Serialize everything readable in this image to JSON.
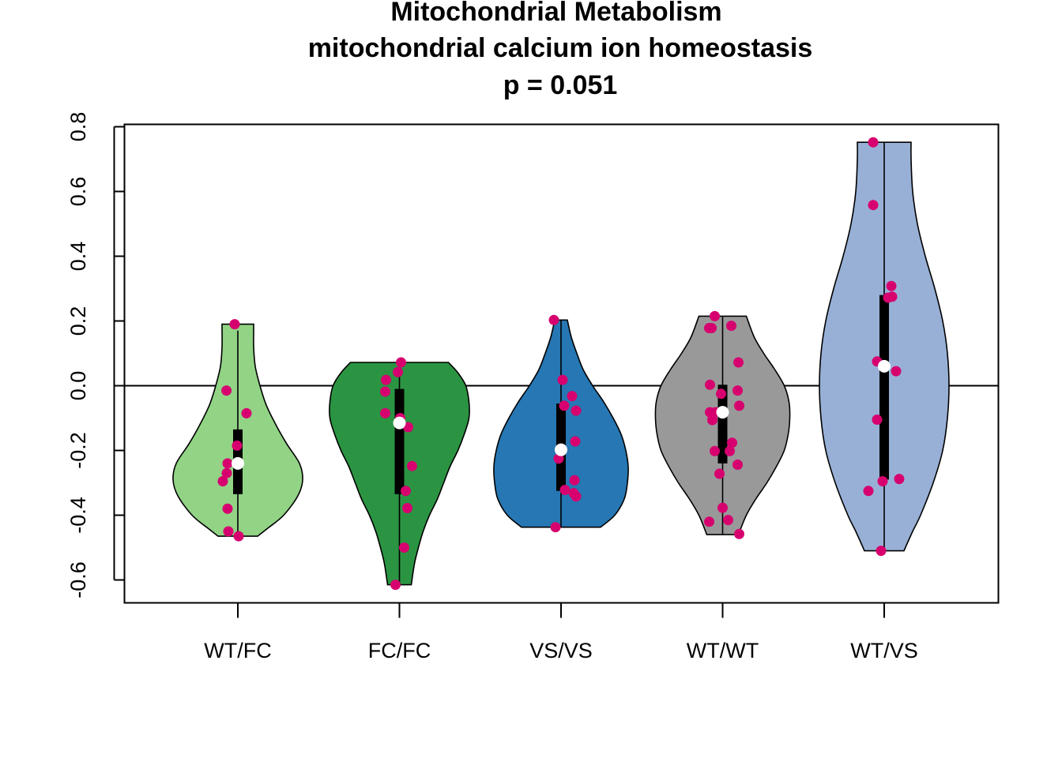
{
  "chart_data": {
    "type": "violin",
    "title": [
      "Mitochondrial Metabolism",
      "mitochondrial calcium ion homeostasis",
      "p = 0.051"
    ],
    "xlabel": "",
    "ylabel": "",
    "categories": [
      "WT/FC",
      "FC/FC",
      "VS/VS",
      "WT/WT",
      "WT/VS"
    ],
    "ylim": [
      -0.67,
      0.81
    ],
    "yticks": [
      -0.6,
      -0.4,
      -0.2,
      0.0,
      0.2,
      0.4,
      0.6,
      0.8
    ],
    "ytick_labels": [
      "-0.6",
      "-0.4",
      "-0.2",
      "0.0",
      "0.2",
      "0.4",
      "0.6",
      "0.8"
    ],
    "reference_line": 0,
    "point_color": "#d6006e",
    "groups": [
      {
        "name": "WT/FC",
        "color": "#92d386",
        "min": -0.465,
        "max": 0.19,
        "whisker_top": 0.17,
        "q1": -0.335,
        "q3": -0.135,
        "median": -0.24,
        "density": [
          [
            -0.465,
            0.25
          ],
          [
            -0.44,
            0.38
          ],
          [
            -0.4,
            0.58
          ],
          [
            -0.34,
            0.76
          ],
          [
            -0.29,
            0.82
          ],
          [
            -0.24,
            0.78
          ],
          [
            -0.18,
            0.62
          ],
          [
            -0.12,
            0.48
          ],
          [
            -0.06,
            0.36
          ],
          [
            0.0,
            0.28
          ],
          [
            0.06,
            0.22
          ],
          [
            0.12,
            0.2
          ],
          [
            0.17,
            0.2
          ],
          [
            0.19,
            0.2
          ]
        ],
        "points": [
          [
            -0.2,
            0.19
          ],
          [
            -0.72,
            -0.015
          ],
          [
            0.55,
            -0.085
          ],
          [
            -0.05,
            -0.185
          ],
          [
            -0.65,
            -0.24
          ],
          [
            0.05,
            -0.24
          ],
          [
            -0.7,
            -0.27
          ],
          [
            -0.95,
            -0.295
          ],
          [
            -0.65,
            -0.38
          ],
          [
            -0.6,
            -0.45
          ],
          [
            0.05,
            -0.465
          ]
        ]
      },
      {
        "name": "FC/FC",
        "color": "#2b9443",
        "min": -0.615,
        "max": 0.072,
        "whisker_top": 0.072,
        "q1": -0.335,
        "q3": -0.01,
        "median": -0.115,
        "density": [
          [
            -0.615,
            0.15
          ],
          [
            -0.55,
            0.19
          ],
          [
            -0.5,
            0.24
          ],
          [
            -0.45,
            0.3
          ],
          [
            -0.4,
            0.38
          ],
          [
            -0.35,
            0.48
          ],
          [
            -0.3,
            0.56
          ],
          [
            -0.25,
            0.64
          ],
          [
            -0.2,
            0.74
          ],
          [
            -0.15,
            0.82
          ],
          [
            -0.1,
            0.88
          ],
          [
            -0.05,
            0.88
          ],
          [
            0.0,
            0.84
          ],
          [
            0.04,
            0.74
          ],
          [
            0.072,
            0.62
          ]
        ],
        "points": [
          [
            0.1,
            0.072
          ],
          [
            -0.85,
            0.018
          ],
          [
            -0.1,
            0.042
          ],
          [
            -0.9,
            -0.018
          ],
          [
            -0.9,
            -0.085
          ],
          [
            0.05,
            -0.1
          ],
          [
            0.55,
            -0.128
          ],
          [
            0.8,
            -0.248
          ],
          [
            0.4,
            -0.325
          ],
          [
            0.5,
            -0.378
          ],
          [
            0.3,
            -0.5
          ],
          [
            -0.25,
            -0.615
          ]
        ]
      },
      {
        "name": "VS/VS",
        "color": "#2677b3",
        "min": -0.437,
        "max": 0.203,
        "whisker_top": 0.203,
        "q1": -0.325,
        "q3": -0.055,
        "median": -0.198,
        "density": [
          [
            -0.437,
            0.5
          ],
          [
            -0.4,
            0.68
          ],
          [
            -0.35,
            0.8
          ],
          [
            -0.3,
            0.84
          ],
          [
            -0.25,
            0.85
          ],
          [
            -0.2,
            0.82
          ],
          [
            -0.15,
            0.76
          ],
          [
            -0.1,
            0.66
          ],
          [
            -0.05,
            0.54
          ],
          [
            0.0,
            0.4
          ],
          [
            0.05,
            0.28
          ],
          [
            0.1,
            0.2
          ],
          [
            0.15,
            0.13
          ],
          [
            0.203,
            0.08
          ]
        ],
        "points": [
          [
            -0.45,
            0.203
          ],
          [
            0.1,
            0.018
          ],
          [
            0.7,
            -0.032
          ],
          [
            0.2,
            -0.062
          ],
          [
            0.95,
            -0.077
          ],
          [
            0.9,
            -0.172
          ],
          [
            -0.15,
            -0.225
          ],
          [
            0.85,
            -0.292
          ],
          [
            0.25,
            -0.322
          ],
          [
            0.8,
            -0.332
          ],
          [
            0.95,
            -0.342
          ],
          [
            -0.35,
            -0.437
          ]
        ]
      },
      {
        "name": "WT/WT",
        "color": "#999999",
        "min": -0.46,
        "max": 0.215,
        "whisker_top": 0.215,
        "q1": -0.24,
        "q3": 0.003,
        "median": -0.082,
        "density": [
          [
            -0.46,
            0.2
          ],
          [
            -0.4,
            0.3
          ],
          [
            -0.35,
            0.42
          ],
          [
            -0.3,
            0.56
          ],
          [
            -0.25,
            0.68
          ],
          [
            -0.2,
            0.78
          ],
          [
            -0.15,
            0.83
          ],
          [
            -0.1,
            0.85
          ],
          [
            -0.05,
            0.84
          ],
          [
            0.0,
            0.78
          ],
          [
            0.05,
            0.66
          ],
          [
            0.1,
            0.52
          ],
          [
            0.15,
            0.4
          ],
          [
            0.215,
            0.3
          ]
        ],
        "points": [
          [
            -0.5,
            0.215
          ],
          [
            -0.85,
            0.178
          ],
          [
            -0.7,
            0.178
          ],
          [
            0.55,
            0.185
          ],
          [
            1.0,
            0.072
          ],
          [
            -0.8,
            0.003
          ],
          [
            -0.1,
            -0.025
          ],
          [
            0.95,
            -0.015
          ],
          [
            1.05,
            -0.062
          ],
          [
            -0.8,
            -0.082
          ],
          [
            -0.45,
            -0.082
          ],
          [
            -0.65,
            -0.106
          ],
          [
            0.6,
            -0.176
          ],
          [
            -0.5,
            -0.202
          ],
          [
            0.45,
            -0.202
          ],
          [
            0.95,
            -0.244
          ],
          [
            -0.2,
            -0.272
          ],
          [
            0.0,
            -0.377
          ],
          [
            -0.85,
            -0.42
          ],
          [
            0.35,
            -0.415
          ],
          [
            1.05,
            -0.458
          ]
        ]
      },
      {
        "name": "WT/VS",
        "color": "#98b0d6",
        "min": -0.51,
        "max": 0.752,
        "whisker_top": 0.752,
        "q1": -0.29,
        "q3": 0.28,
        "median": 0.06,
        "density": [
          [
            -0.51,
            0.25
          ],
          [
            -0.45,
            0.36
          ],
          [
            -0.4,
            0.46
          ],
          [
            -0.3,
            0.62
          ],
          [
            -0.2,
            0.74
          ],
          [
            -0.1,
            0.8
          ],
          [
            0.0,
            0.82
          ],
          [
            0.1,
            0.8
          ],
          [
            0.2,
            0.74
          ],
          [
            0.3,
            0.64
          ],
          [
            0.4,
            0.52
          ],
          [
            0.5,
            0.42
          ],
          [
            0.6,
            0.36
          ],
          [
            0.7,
            0.34
          ],
          [
            0.752,
            0.34
          ]
        ],
        "points": [
          [
            -0.7,
            0.752
          ],
          [
            -0.7,
            0.558
          ],
          [
            0.45,
            0.308
          ],
          [
            0.25,
            0.272
          ],
          [
            0.5,
            0.275
          ],
          [
            -0.45,
            0.075
          ],
          [
            0.75,
            0.045
          ],
          [
            -0.45,
            -0.105
          ],
          [
            -0.1,
            -0.295
          ],
          [
            0.95,
            -0.288
          ],
          [
            -1.0,
            -0.325
          ],
          [
            -0.2,
            -0.51
          ]
        ]
      }
    ]
  }
}
